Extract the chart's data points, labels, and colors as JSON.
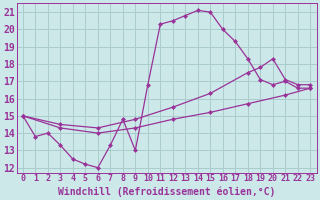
{
  "xlabel": "Windchill (Refroidissement éolien,°C)",
  "bg_color": "#cce8e8",
  "line_color": "#993399",
  "grid_color": "#aacccc",
  "xlim": [
    -0.5,
    23.5
  ],
  "ylim": [
    11.7,
    21.5
  ],
  "yticks": [
    12,
    13,
    14,
    15,
    16,
    17,
    18,
    19,
    20,
    21
  ],
  "xticks": [
    0,
    1,
    2,
    3,
    4,
    5,
    6,
    7,
    8,
    9,
    10,
    11,
    12,
    13,
    14,
    15,
    16,
    17,
    18,
    19,
    20,
    21,
    22,
    23
  ],
  "line1_x": [
    0,
    1,
    2,
    3,
    4,
    5,
    6,
    7,
    8,
    9,
    10,
    11,
    12,
    13,
    14,
    15,
    16,
    17,
    18,
    19,
    20,
    21,
    22,
    23
  ],
  "line1_y": [
    15.0,
    13.8,
    14.0,
    13.3,
    12.5,
    12.2,
    12.0,
    13.3,
    14.8,
    13.0,
    16.8,
    20.3,
    20.5,
    20.8,
    21.1,
    21.0,
    20.0,
    19.3,
    18.3,
    17.1,
    16.8,
    17.0,
    16.6,
    16.6
  ],
  "line2_x": [
    0,
    3,
    6,
    9,
    12,
    15,
    18,
    21,
    23
  ],
  "line2_y": [
    15.0,
    14.3,
    14.0,
    14.3,
    14.8,
    15.2,
    15.7,
    16.2,
    16.6
  ],
  "line3_x": [
    0,
    3,
    6,
    9,
    12,
    15,
    18,
    19,
    20,
    21,
    22,
    23
  ],
  "line3_y": [
    15.0,
    14.5,
    14.3,
    14.8,
    15.5,
    16.3,
    17.5,
    17.8,
    18.3,
    17.1,
    16.8,
    16.8
  ],
  "font_size_xlabel": 7,
  "font_size_ytick": 7,
  "font_size_xtick": 6.0,
  "marker": "D",
  "marker_size": 2.5
}
